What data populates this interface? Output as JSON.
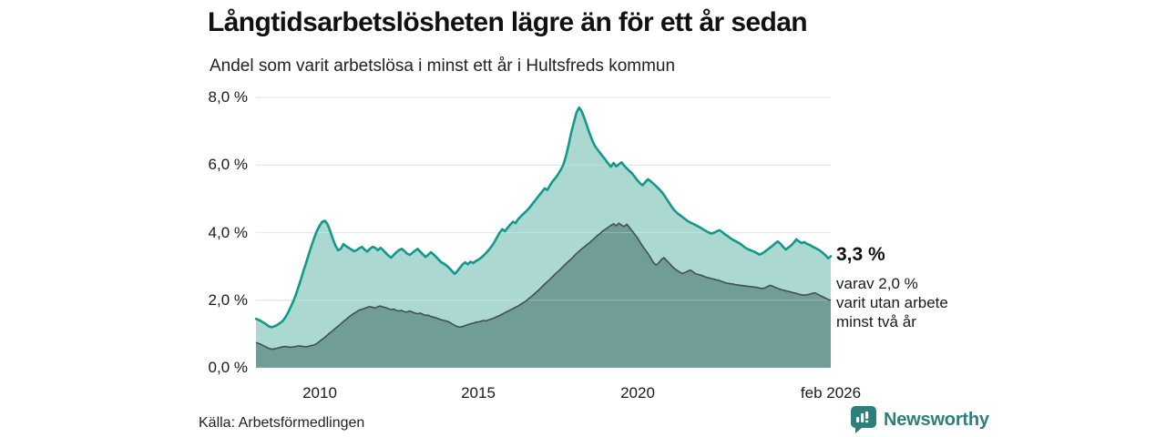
{
  "header": {
    "title": "Långtidsarbetslösheten lägre än för ett år sedan",
    "subtitle": "Andel som varit arbetslösa i minst ett år i Hultsfreds kommun"
  },
  "annotation": {
    "value_label": "3,3 %",
    "detail_lines": [
      "varav 2,0 %",
      "varit utan arbete",
      "minst två år"
    ]
  },
  "footer": {
    "source": "Källa: Arbetsförmedlingen",
    "brand": "Newsworthy"
  },
  "colors": {
    "total_line": "#12998b",
    "total_fill": "#abd8d1",
    "two_year_line": "#41514d",
    "two_year_fill": "#709e97",
    "gridline": "#e3e3e3",
    "brand_teal": "#2e7f7a",
    "text": "#1a1a1a"
  },
  "chart_data": {
    "type": "area",
    "title": "Långtidsarbetslösheten lägre än för ett år sedan",
    "subtitle": "Andel som varit arbetslösa i minst ett år i Hultsfreds kommun",
    "grid": true,
    "legend": false,
    "y_axis": {
      "tick_labels": [
        "0,0 %",
        "2,0 %",
        "4,0 %",
        "6,0 %",
        "8,0 %"
      ],
      "tick_values": [
        0,
        2,
        4,
        6,
        8
      ],
      "ylim": [
        0,
        8
      ]
    },
    "x_axis": {
      "tick_labels": [
        "2010",
        "2015",
        "2020",
        "feb 2026"
      ],
      "tick_positions_years": [
        2010.0,
        2015.0,
        2020.0,
        2026.083
      ],
      "x_domain_years": [
        2008.0,
        2026.083
      ],
      "frequency": "monthly",
      "last_point": "feb 2026"
    },
    "latest_values": {
      "total": "3,3 %",
      "two_year": "2,0 %"
    },
    "series": [
      {
        "key": "arbetslosa_minst_ett_ar",
        "name": "Andel arbetslösa minst ett år",
        "color": "#12998b",
        "fill": "#abd8d1",
        "values": [
          1.45,
          1.42,
          1.38,
          1.33,
          1.28,
          1.22,
          1.2,
          1.23,
          1.27,
          1.32,
          1.38,
          1.48,
          1.62,
          1.78,
          1.95,
          2.15,
          2.38,
          2.62,
          2.88,
          3.12,
          3.38,
          3.62,
          3.85,
          4.05,
          4.2,
          4.32,
          4.35,
          4.25,
          4.05,
          3.82,
          3.62,
          3.48,
          3.52,
          3.66,
          3.6,
          3.55,
          3.5,
          3.45,
          3.48,
          3.54,
          3.58,
          3.5,
          3.44,
          3.52,
          3.58,
          3.55,
          3.48,
          3.55,
          3.48,
          3.4,
          3.32,
          3.26,
          3.34,
          3.42,
          3.48,
          3.52,
          3.46,
          3.38,
          3.34,
          3.4,
          3.46,
          3.52,
          3.44,
          3.36,
          3.28,
          3.34,
          3.42,
          3.36,
          3.28,
          3.2,
          3.12,
          3.08,
          3.02,
          2.95,
          2.86,
          2.78,
          2.86,
          2.96,
          3.06,
          3.12,
          3.06,
          3.14,
          3.1,
          3.16,
          3.2,
          3.26,
          3.33,
          3.41,
          3.5,
          3.6,
          3.72,
          3.86,
          4.0,
          4.1,
          4.04,
          4.14,
          4.24,
          4.32,
          4.28,
          4.4,
          4.48,
          4.56,
          4.63,
          4.71,
          4.81,
          4.91,
          5.01,
          5.11,
          5.21,
          5.31,
          5.26,
          5.4,
          5.52,
          5.61,
          5.72,
          5.85,
          6.0,
          6.25,
          6.58,
          6.95,
          7.25,
          7.55,
          7.7,
          7.58,
          7.38,
          7.15,
          6.92,
          6.72,
          6.56,
          6.45,
          6.35,
          6.25,
          6.15,
          6.04,
          5.95,
          6.06,
          5.96,
          6.02,
          6.08,
          5.98,
          5.9,
          5.82,
          5.75,
          5.65,
          5.55,
          5.46,
          5.4,
          5.5,
          5.58,
          5.52,
          5.45,
          5.38,
          5.3,
          5.22,
          5.12,
          5.0,
          4.88,
          4.76,
          4.66,
          4.58,
          4.52,
          4.46,
          4.4,
          4.34,
          4.3,
          4.26,
          4.22,
          4.18,
          4.14,
          4.09,
          4.04,
          4.0,
          3.97,
          4.0,
          4.04,
          4.07,
          4.02,
          3.95,
          3.9,
          3.84,
          3.79,
          3.75,
          3.71,
          3.66,
          3.6,
          3.54,
          3.5,
          3.47,
          3.44,
          3.4,
          3.35,
          3.38,
          3.43,
          3.49,
          3.55,
          3.61,
          3.68,
          3.74,
          3.67,
          3.58,
          3.5,
          3.56,
          3.62,
          3.7,
          3.8,
          3.74,
          3.69,
          3.72,
          3.67,
          3.64,
          3.59,
          3.55,
          3.51,
          3.46,
          3.4,
          3.33,
          3.24,
          3.3
        ]
      },
      {
        "key": "utan_arbete_minst_tva_ar",
        "name": "varav utan arbete minst två år",
        "color": "#41514d",
        "fill": "#709e97",
        "values": [
          0.75,
          0.72,
          0.69,
          0.65,
          0.61,
          0.57,
          0.55,
          0.56,
          0.58,
          0.6,
          0.62,
          0.63,
          0.62,
          0.61,
          0.62,
          0.63,
          0.65,
          0.64,
          0.63,
          0.62,
          0.64,
          0.66,
          0.68,
          0.72,
          0.78,
          0.84,
          0.9,
          0.97,
          1.04,
          1.1,
          1.17,
          1.23,
          1.3,
          1.37,
          1.43,
          1.5,
          1.56,
          1.61,
          1.66,
          1.71,
          1.73,
          1.76,
          1.79,
          1.81,
          1.79,
          1.77,
          1.81,
          1.83,
          1.8,
          1.78,
          1.75,
          1.72,
          1.74,
          1.7,
          1.68,
          1.7,
          1.66,
          1.65,
          1.68,
          1.65,
          1.62,
          1.6,
          1.62,
          1.58,
          1.55,
          1.56,
          1.52,
          1.5,
          1.48,
          1.45,
          1.42,
          1.4,
          1.38,
          1.35,
          1.3,
          1.26,
          1.22,
          1.2,
          1.22,
          1.25,
          1.28,
          1.3,
          1.32,
          1.35,
          1.36,
          1.38,
          1.4,
          1.39,
          1.42,
          1.45,
          1.48,
          1.51,
          1.55,
          1.59,
          1.63,
          1.67,
          1.71,
          1.75,
          1.79,
          1.83,
          1.88,
          1.93,
          1.98,
          2.05,
          2.11,
          2.18,
          2.25,
          2.32,
          2.4,
          2.48,
          2.55,
          2.62,
          2.7,
          2.78,
          2.85,
          2.92,
          3.0,
          3.08,
          3.15,
          3.22,
          3.3,
          3.38,
          3.45,
          3.52,
          3.58,
          3.65,
          3.7,
          3.78,
          3.85,
          3.92,
          3.98,
          4.05,
          4.1,
          4.16,
          4.21,
          4.26,
          4.2,
          4.28,
          4.22,
          4.18,
          4.25,
          4.15,
          4.05,
          3.95,
          3.85,
          3.72,
          3.6,
          3.48,
          3.38,
          3.25,
          3.12,
          3.04,
          3.1,
          3.2,
          3.26,
          3.18,
          3.1,
          3.01,
          2.94,
          2.88,
          2.83,
          2.79,
          2.82,
          2.86,
          2.89,
          2.84,
          2.78,
          2.76,
          2.74,
          2.71,
          2.68,
          2.66,
          2.64,
          2.62,
          2.6,
          2.58,
          2.55,
          2.52,
          2.5,
          2.49,
          2.48,
          2.46,
          2.45,
          2.44,
          2.43,
          2.42,
          2.41,
          2.4,
          2.39,
          2.38,
          2.36,
          2.35,
          2.36,
          2.4,
          2.44,
          2.42,
          2.38,
          2.35,
          2.32,
          2.3,
          2.28,
          2.26,
          2.24,
          2.22,
          2.2,
          2.18,
          2.16,
          2.15,
          2.16,
          2.18,
          2.2,
          2.22,
          2.18,
          2.14,
          2.1,
          2.06,
          2.02,
          2.0
        ]
      }
    ]
  }
}
